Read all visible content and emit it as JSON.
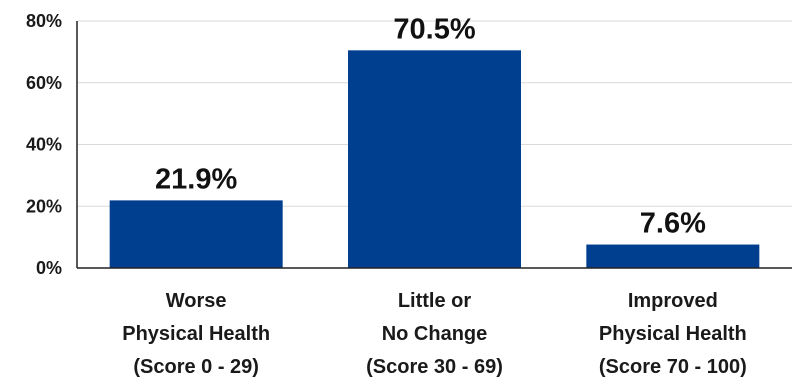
{
  "chart_data": {
    "type": "bar",
    "title": "",
    "xlabel": "",
    "ylabel": "",
    "categories": [
      [
        "Worse",
        "Physical Health",
        "(Score 0 - 29)"
      ],
      [
        "Little or",
        "No Change",
        "(Score 30 - 69)"
      ],
      [
        "Improved",
        "Physical Health",
        "(Score 70 - 100)"
      ]
    ],
    "values": [
      21.9,
      70.5,
      7.6
    ],
    "data_labels": [
      "21.9%",
      "70.5%",
      "7.6%"
    ],
    "ylim": [
      0,
      80
    ],
    "yticks": [
      0,
      20,
      40,
      60,
      80
    ],
    "ytick_labels": [
      "0%",
      "20%",
      "40%",
      "60%",
      "80%"
    ],
    "grid": true,
    "bar_color": "#003f8f"
  }
}
